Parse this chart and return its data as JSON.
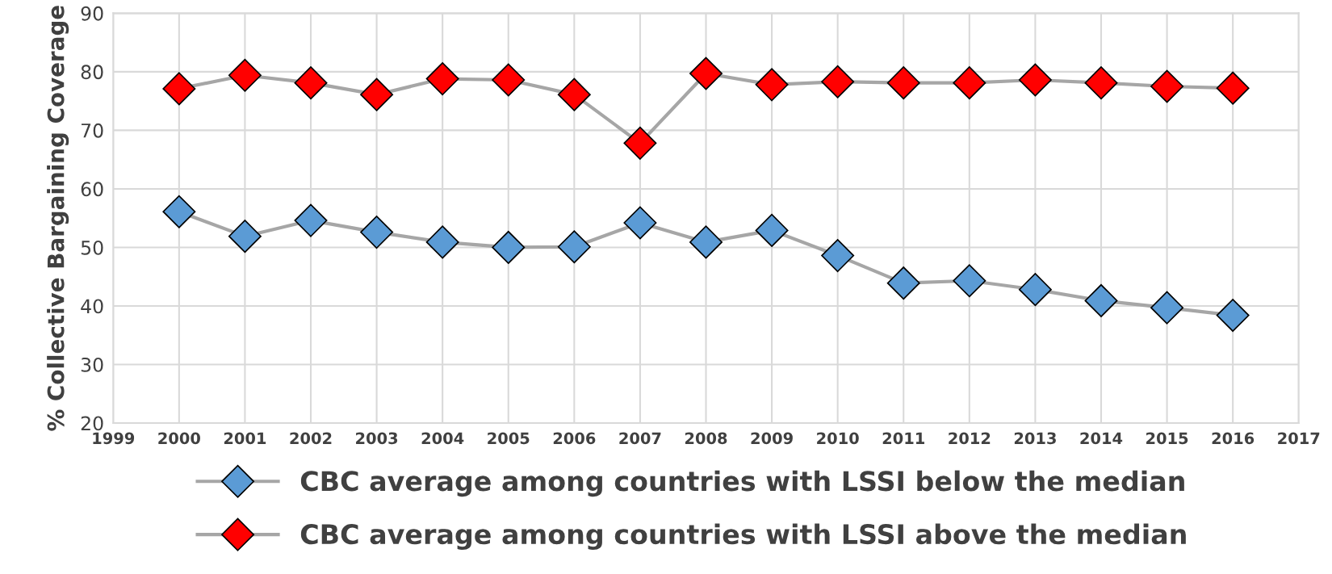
{
  "chart_data": {
    "type": "line",
    "ylabel": "% Collective Bargaining Coverage",
    "x": [
      2000,
      2001,
      2002,
      2003,
      2004,
      2005,
      2006,
      2007,
      2008,
      2009,
      2010,
      2011,
      2012,
      2013,
      2014,
      2015,
      2016
    ],
    "series": [
      {
        "name": "CBC average among countries with LSSI below the median",
        "color": "#5b9bd5",
        "values": [
          56.1,
          51.9,
          54.6,
          52.6,
          50.9,
          50.0,
          50.1,
          54.2,
          50.9,
          52.9,
          48.6,
          43.9,
          44.3,
          42.8,
          40.9,
          39.7,
          38.4
        ]
      },
      {
        "name": "CBC average among countries with LSSI above the median",
        "color": "#ff0000",
        "values": [
          77.1,
          79.4,
          78.1,
          76.1,
          78.8,
          78.6,
          76.1,
          67.8,
          79.7,
          77.8,
          78.3,
          78.1,
          78.1,
          78.6,
          78.1,
          77.5,
          77.2
        ]
      }
    ],
    "xlim": [
      1999,
      2017
    ],
    "xticks": [
      1999,
      2000,
      2001,
      2002,
      2003,
      2004,
      2005,
      2006,
      2007,
      2008,
      2009,
      2010,
      2011,
      2012,
      2013,
      2014,
      2015,
      2016,
      2017
    ],
    "ylim": [
      20,
      90
    ],
    "yticks": [
      20,
      30,
      40,
      50,
      60,
      70,
      80,
      90
    ],
    "grid": true,
    "legend": "bottom",
    "marker": "diamond",
    "line_style": "solid"
  }
}
